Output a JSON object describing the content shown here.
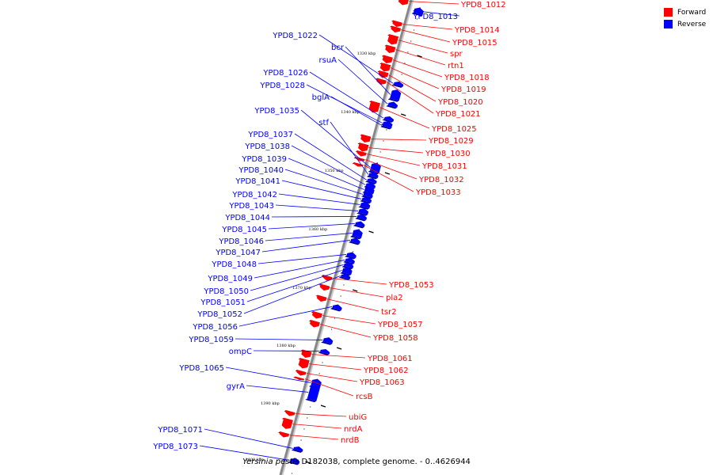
{
  "colors": {
    "forward": "#ff0000",
    "reverse": "#0000ff",
    "backbone": "#888888"
  },
  "legend": [
    {
      "key": "forward",
      "label": "Forward"
    },
    {
      "key": "reverse",
      "label": "Reverse"
    }
  ],
  "caption": {
    "species": "Yersinia pestis",
    "rest": " D182038, complete genome. - 0..4626944"
  },
  "kbp_ticks": [
    "1330 kbp",
    "1340 kbp",
    "1350 kbp",
    "1360 kbp",
    "1370 kbp",
    "1380 kbp",
    "1390 kbp",
    "1400 kbp"
  ],
  "genes": [
    {
      "name": "YPD8_1012",
      "strand": "forward"
    },
    {
      "name": "YPD8_1013",
      "strand": "reverse"
    },
    {
      "name": "YPD8_1014",
      "strand": "forward"
    },
    {
      "name": "YPD8_1015",
      "strand": "forward"
    },
    {
      "name": "spr",
      "strand": "forward"
    },
    {
      "name": "rtn1",
      "strand": "forward"
    },
    {
      "name": "YPD8_1018",
      "strand": "forward"
    },
    {
      "name": "YPD8_1019",
      "strand": "forward"
    },
    {
      "name": "YPD8_1020",
      "strand": "forward"
    },
    {
      "name": "YPD8_1021",
      "strand": "forward"
    },
    {
      "name": "YPD8_1022",
      "strand": "reverse"
    },
    {
      "name": "bcr",
      "strand": "reverse"
    },
    {
      "name": "rsuA",
      "strand": "reverse"
    },
    {
      "name": "YPD8_1025",
      "strand": "forward"
    },
    {
      "name": "YPD8_1026",
      "strand": "reverse"
    },
    {
      "name": "YPD8_1028",
      "strand": "reverse"
    },
    {
      "name": "YPD8_1029",
      "strand": "forward"
    },
    {
      "name": "bglA",
      "strand": "reverse"
    },
    {
      "name": "YPD8_1030",
      "strand": "forward"
    },
    {
      "name": "YPD8_1031",
      "strand": "forward"
    },
    {
      "name": "YPD8_1032",
      "strand": "forward"
    },
    {
      "name": "YPD8_1033",
      "strand": "forward"
    },
    {
      "name": "YPD8_1035",
      "strand": "reverse"
    },
    {
      "name": "stf",
      "strand": "reverse"
    },
    {
      "name": "YPD8_1037",
      "strand": "reverse"
    },
    {
      "name": "YPD8_1038",
      "strand": "reverse"
    },
    {
      "name": "YPD8_1039",
      "strand": "reverse"
    },
    {
      "name": "YPD8_1040",
      "strand": "reverse"
    },
    {
      "name": "YPD8_1041",
      "strand": "reverse"
    },
    {
      "name": "YPD8_1042",
      "strand": "reverse"
    },
    {
      "name": "YPD8_1043",
      "strand": "reverse"
    },
    {
      "name": "YPD8_1044",
      "strand": "reverse"
    },
    {
      "name": "YPD8_1045",
      "strand": "reverse"
    },
    {
      "name": "YPD8_1046",
      "strand": "reverse"
    },
    {
      "name": "YPD8_1047",
      "strand": "reverse"
    },
    {
      "name": "YPD8_1048",
      "strand": "reverse"
    },
    {
      "name": "YPD8_1049",
      "strand": "reverse"
    },
    {
      "name": "YPD8_1050",
      "strand": "reverse"
    },
    {
      "name": "YPD8_1051",
      "strand": "reverse"
    },
    {
      "name": "YPD8_1052",
      "strand": "reverse"
    },
    {
      "name": "YPD8_1053",
      "strand": "forward"
    },
    {
      "name": "pla2",
      "strand": "forward"
    },
    {
      "name": "tsr2",
      "strand": "forward"
    },
    {
      "name": "YPD8_1056",
      "strand": "reverse"
    },
    {
      "name": "YPD8_1057",
      "strand": "forward"
    },
    {
      "name": "YPD8_1058",
      "strand": "forward"
    },
    {
      "name": "YPD8_1059",
      "strand": "reverse"
    },
    {
      "name": "ompC",
      "strand": "reverse"
    },
    {
      "name": "YPD8_1061",
      "strand": "forward"
    },
    {
      "name": "YPD8_1062",
      "strand": "forward"
    },
    {
      "name": "YPD8_1063",
      "strand": "forward"
    },
    {
      "name": "YPD8_1065",
      "strand": "reverse"
    },
    {
      "name": "rcsB",
      "strand": "forward"
    },
    {
      "name": "gyrA",
      "strand": "reverse"
    },
    {
      "name": "ubiG",
      "strand": "forward"
    },
    {
      "name": "nrdA",
      "strand": "forward"
    },
    {
      "name": "nrdB",
      "strand": "forward"
    },
    {
      "name": "YPD8_1071",
      "strand": "reverse"
    },
    {
      "name": "YPD8_1073",
      "strand": "reverse"
    }
  ]
}
